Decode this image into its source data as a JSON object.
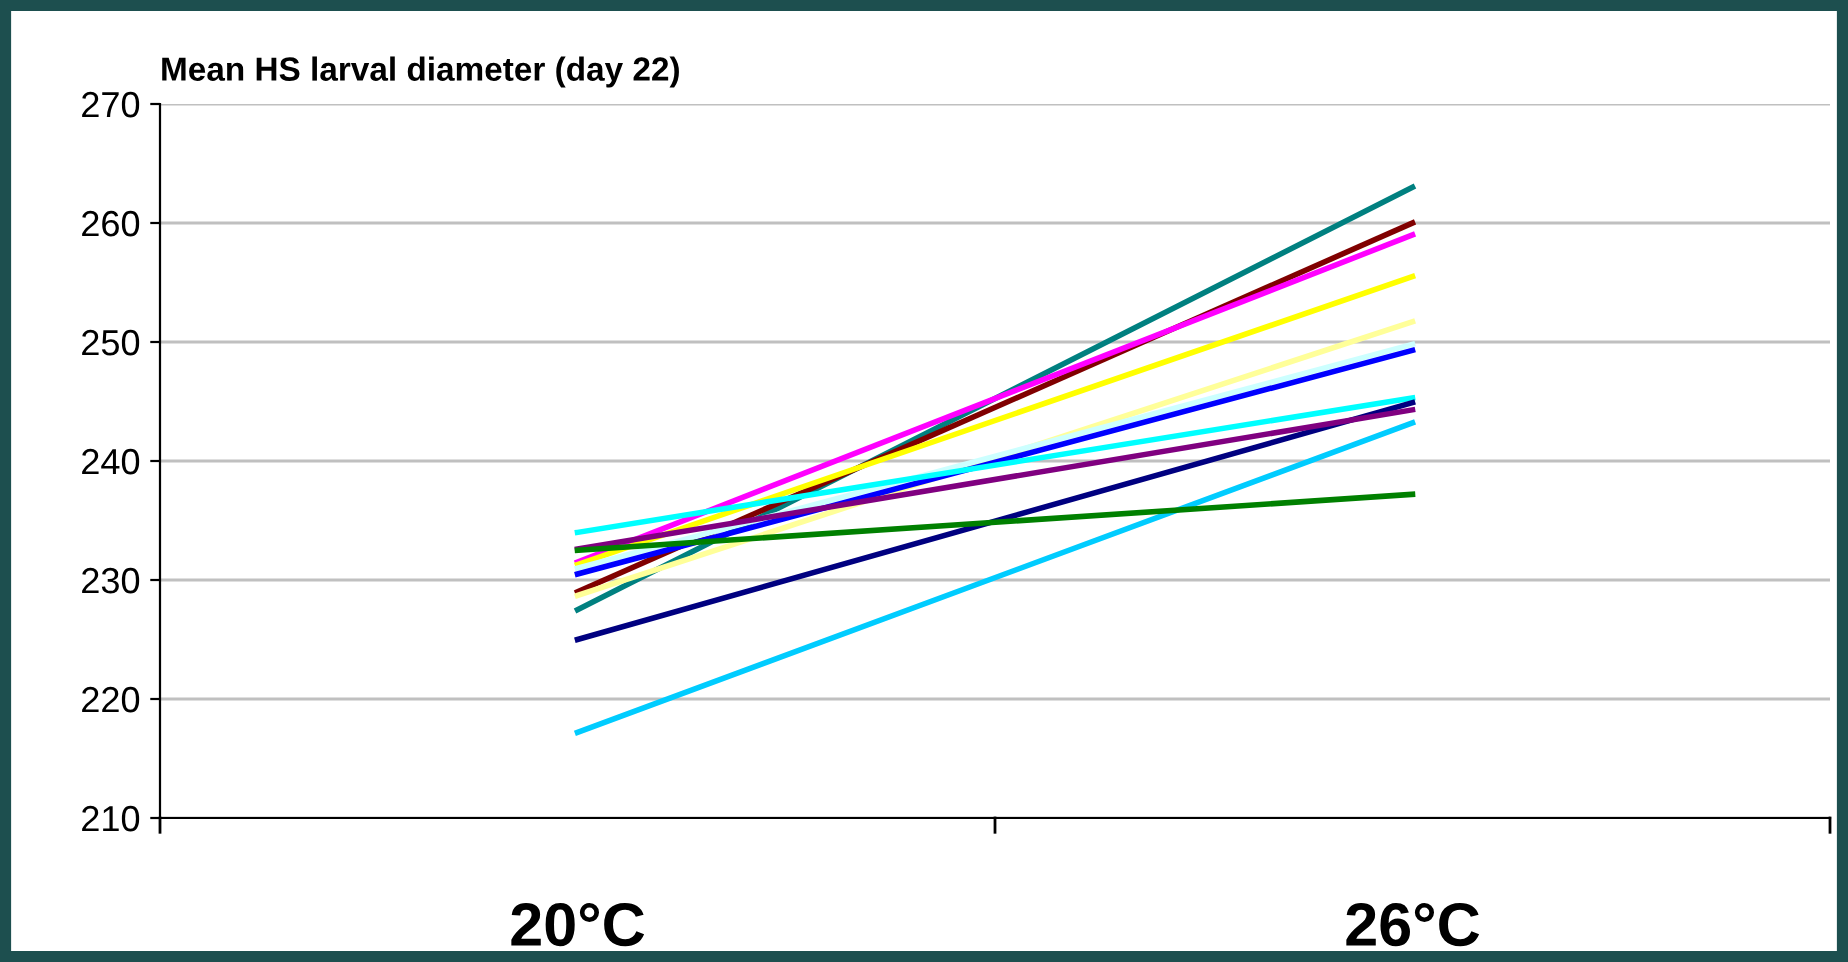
{
  "chart_data": {
    "type": "line",
    "title": "Mean HS larval diameter (day 22)",
    "categories": [
      "20°C",
      "26°C"
    ],
    "series": [
      {
        "color": "#008080",
        "values": [
          227.5,
          263
        ]
      },
      {
        "color": "#800000",
        "values": [
          229,
          260
        ]
      },
      {
        "color": "#ff00ff",
        "values": [
          231.5,
          259
        ]
      },
      {
        "color": "#ffff00",
        "values": [
          231.3,
          255.5
        ]
      },
      {
        "color": "#ffff99",
        "values": [
          228.7,
          251.7
        ]
      },
      {
        "color": "#ccffff",
        "values": [
          231,
          249.8
        ]
      },
      {
        "color": "#0000ff",
        "values": [
          230.5,
          249.3
        ]
      },
      {
        "color": "#00ffff",
        "values": [
          234,
          245.3
        ]
      },
      {
        "color": "#000080",
        "values": [
          225,
          244.9
        ]
      },
      {
        "color": "#800080",
        "values": [
          232.6,
          244.3
        ]
      },
      {
        "color": "#00ccff",
        "values": [
          217.2,
          243.2
        ]
      },
      {
        "color": "#008000",
        "values": [
          232.5,
          237.2
        ]
      }
    ],
    "ylim": [
      210,
      270
    ],
    "yticks": [
      210,
      220,
      230,
      240,
      250,
      260,
      270
    ],
    "grid": "y",
    "legend": false,
    "marker": "none",
    "line_style": "solid"
  }
}
